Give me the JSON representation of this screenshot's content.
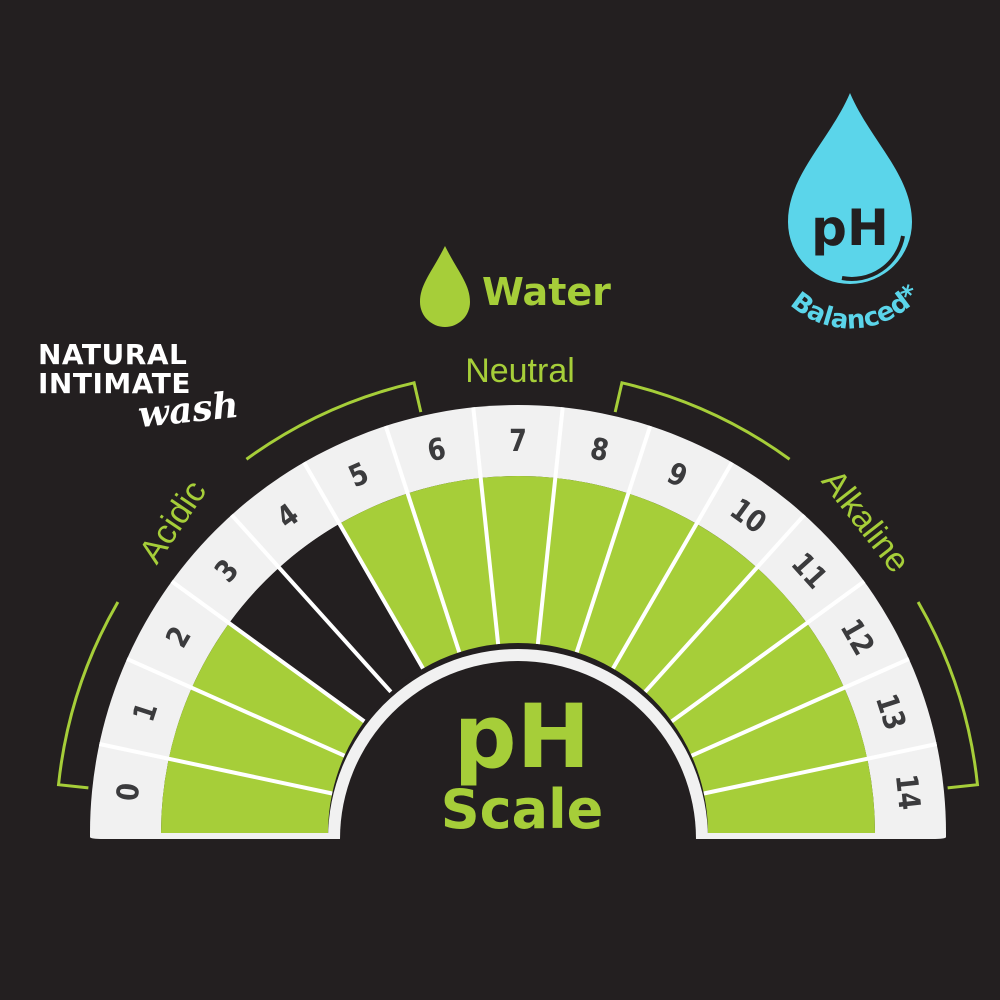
{
  "brand": {
    "line1": "NATURAL",
    "line2": "INTIMATE",
    "line3": "wash"
  },
  "badge": {
    "symbol": "pH",
    "label": "Balanced*",
    "color": "#5bd5ea"
  },
  "water_label": "Water",
  "center": {
    "line1": "pH",
    "line2": "Scale"
  },
  "ranges": {
    "acidic": "Acidic",
    "neutral": "Neutral",
    "alkaline": "Alkaline"
  },
  "colors": {
    "background": "#231f20",
    "green": "#a6ce39",
    "band": "#f1f1f1",
    "number": "#3b3b3d"
  },
  "segments": [
    {
      "value": "0",
      "filled": true
    },
    {
      "value": "1",
      "filled": true
    },
    {
      "value": "2",
      "filled": true
    },
    {
      "value": "3",
      "filled": false
    },
    {
      "value": "4",
      "filled": false
    },
    {
      "value": "5",
      "filled": true
    },
    {
      "value": "6",
      "filled": true
    },
    {
      "value": "7",
      "filled": true
    },
    {
      "value": "8",
      "filled": true
    },
    {
      "value": "9",
      "filled": true
    },
    {
      "value": "10",
      "filled": true
    },
    {
      "value": "11",
      "filled": true
    },
    {
      "value": "12",
      "filled": true
    },
    {
      "value": "13",
      "filled": true
    },
    {
      "value": "14",
      "filled": true
    }
  ]
}
